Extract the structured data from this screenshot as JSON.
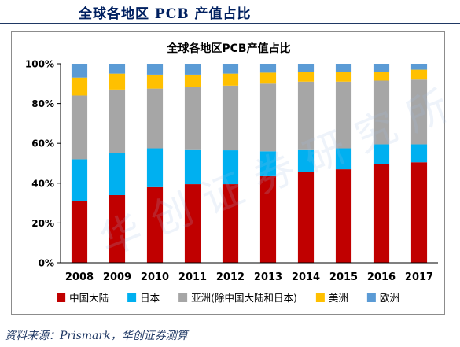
{
  "header": {
    "title": "全球各地区 PCB 产值占比"
  },
  "chart_data": {
    "type": "bar",
    "stacked": true,
    "title": "全球各地区PCB产值占比",
    "xlabel": "",
    "ylabel": "",
    "ylim": [
      0,
      100
    ],
    "yticks": [
      "0%",
      "20%",
      "40%",
      "60%",
      "80%",
      "100%"
    ],
    "grid": false,
    "legend_position": "bottom",
    "categories": [
      "2008",
      "2009",
      "2010",
      "2011",
      "2012",
      "2013",
      "2014",
      "2015",
      "2016",
      "2017"
    ],
    "series": [
      {
        "name": "中国大陆",
        "color": "#c00000",
        "values": [
          31,
          34,
          38,
          39.5,
          39.5,
          43.5,
          45.5,
          47,
          49.5,
          50.5
        ]
      },
      {
        "name": "日本",
        "color": "#00b0f0",
        "values": [
          21,
          21,
          19.5,
          17.5,
          17,
          12.5,
          11.5,
          10.5,
          10,
          9
        ]
      },
      {
        "name": "亚洲(除中国大陆和日本)",
        "color": "#a6a6a6",
        "values": [
          32,
          32,
          30,
          31.5,
          32.5,
          34,
          34,
          33.5,
          32,
          32.5
        ]
      },
      {
        "name": "美洲",
        "color": "#ffc000",
        "values": [
          9,
          8,
          7,
          6,
          6,
          5.5,
          5,
          5,
          4.5,
          5
        ]
      },
      {
        "name": "欧洲",
        "color": "#5b9bd5",
        "values": [
          7,
          5,
          5.5,
          5.5,
          5,
          4.5,
          4,
          4,
          4,
          3
        ]
      }
    ]
  },
  "watermark": "华创证券研究所",
  "source_note": "资料来源：Prismark，华创证券测算"
}
